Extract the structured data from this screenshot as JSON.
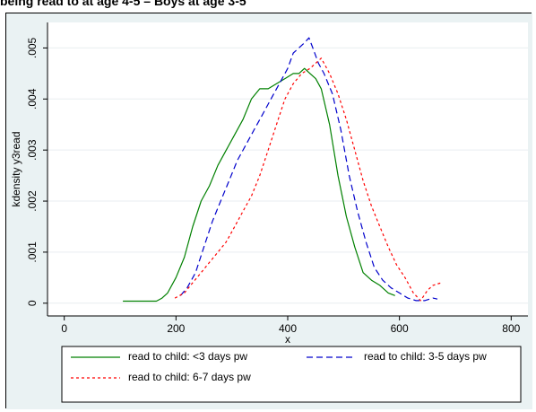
{
  "caption": "being read to at age 4-5 – Boys at age 3-5",
  "chart_data": {
    "type": "line",
    "title": "",
    "xlabel": "x",
    "ylabel": "kdensity y3read",
    "xlim": [
      -30,
      830
    ],
    "ylim": [
      -0.00025,
      0.0055
    ],
    "xticks": [
      0,
      200,
      400,
      600,
      800
    ],
    "xtick_labels": [
      "0",
      "200",
      "400",
      "600",
      "800"
    ],
    "yticks": [
      0,
      0.001,
      0.002,
      0.003,
      0.004,
      0.005
    ],
    "ytick_labels": [
      "0",
      ".001",
      ".002",
      ".003",
      ".004",
      ".005"
    ],
    "grid": "horizontal",
    "legend_position": "bottom",
    "series": [
      {
        "name": "read to child: <3 days pw",
        "color": "#008000",
        "style": "solid",
        "x": [
          105,
          140,
          165,
          175,
          185,
          200,
          215,
          230,
          245,
          260,
          275,
          290,
          305,
          320,
          335,
          350,
          365,
          380,
          395,
          410,
          420,
          430,
          440,
          450,
          460,
          475,
          490,
          505,
          520,
          535,
          550,
          565,
          580,
          592
        ],
        "y": [
          4e-05,
          4e-05,
          4e-05,
          0.0001,
          0.0002,
          0.0005,
          0.0009,
          0.0015,
          0.002,
          0.0023,
          0.0027,
          0.003,
          0.0033,
          0.0036,
          0.004,
          0.0042,
          0.0042,
          0.0043,
          0.0044,
          0.0045,
          0.0045,
          0.0046,
          0.0045,
          0.0044,
          0.0042,
          0.0035,
          0.0025,
          0.0017,
          0.0011,
          0.0006,
          0.00045,
          0.00035,
          0.0002,
          0.00015
        ]
      },
      {
        "name": "read to child: 3-5 days pw",
        "color": "#0000cc",
        "style": "dashed",
        "x": [
          208,
          220,
          235,
          250,
          265,
          280,
          295,
          310,
          325,
          340,
          355,
          370,
          385,
          400,
          410,
          420,
          430,
          438,
          445,
          455,
          465,
          480,
          495,
          510,
          525,
          540,
          555,
          570,
          585,
          600,
          615,
          630,
          645,
          660,
          668
        ],
        "y": [
          0.00015,
          0.0003,
          0.0006,
          0.0011,
          0.0016,
          0.002,
          0.0024,
          0.0028,
          0.0031,
          0.0034,
          0.0037,
          0.004,
          0.0043,
          0.0046,
          0.0049,
          0.005,
          0.0051,
          0.0052,
          0.005,
          0.0047,
          0.0045,
          0.0041,
          0.0034,
          0.0025,
          0.0018,
          0.0012,
          0.0007,
          0.00045,
          0.0003,
          0.0002,
          0.0001,
          5e-05,
          5e-05,
          0.0001,
          8e-05
        ]
      },
      {
        "name": "read to child: 6-7 days pw",
        "color": "#ff0000",
        "style": "dotted",
        "x": [
          198,
          215,
          230,
          245,
          260,
          275,
          290,
          305,
          320,
          335,
          350,
          365,
          380,
          395,
          410,
          425,
          440,
          450,
          460,
          475,
          490,
          505,
          520,
          535,
          550,
          565,
          580,
          595,
          610,
          625,
          638,
          650,
          660,
          675
        ],
        "y": [
          0.0001,
          0.0002,
          0.0004,
          0.0006,
          0.0008,
          0.001,
          0.0012,
          0.0015,
          0.0018,
          0.0021,
          0.0025,
          0.003,
          0.0035,
          0.004,
          0.0043,
          0.0045,
          0.0046,
          0.0047,
          0.0048,
          0.0045,
          0.0041,
          0.0036,
          0.003,
          0.0024,
          0.0019,
          0.0015,
          0.0011,
          0.00075,
          0.0005,
          0.0002,
          5e-05,
          0.00025,
          0.00035,
          0.0004
        ]
      }
    ]
  }
}
